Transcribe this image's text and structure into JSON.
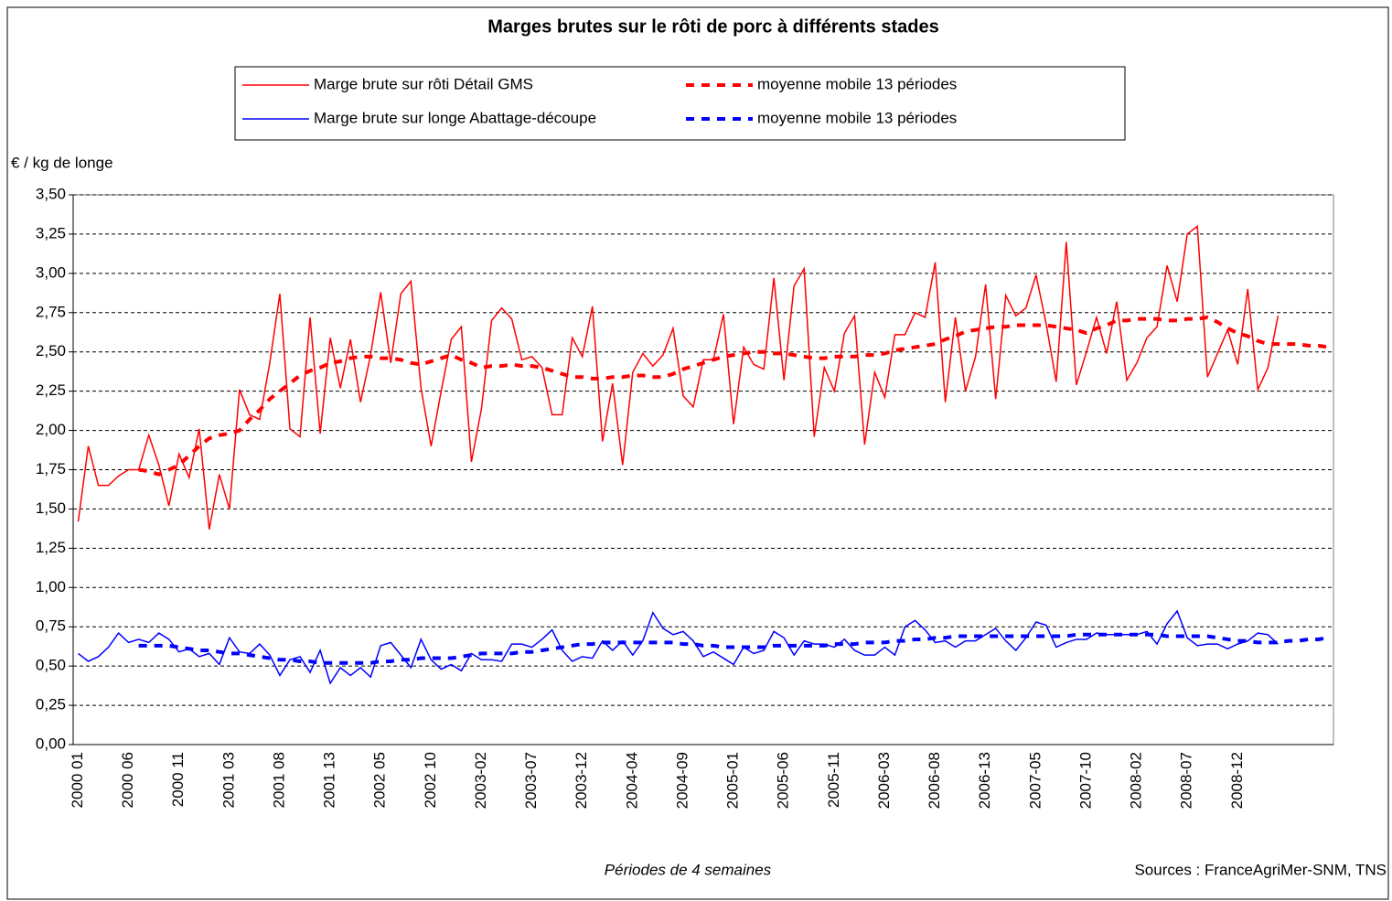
{
  "chart_data": {
    "type": "line",
    "title": "Marges brutes sur le rôti de porc à différents stades",
    "y_label": "€ / kg de longe",
    "x_label": "Périodes de 4 semaines",
    "source": "Sources : FranceAgriMer-SNM, TNS",
    "categories": [
      "2000 01",
      null,
      null,
      null,
      null,
      "2000 06",
      null,
      null,
      null,
      null,
      "2000 11",
      null,
      null,
      null,
      null,
      "2001 03",
      null,
      null,
      null,
      null,
      "2001 08",
      null,
      null,
      null,
      null,
      "2001 13",
      null,
      null,
      null,
      null,
      "2002 05",
      null,
      null,
      null,
      null,
      "2002 10",
      null,
      null,
      null,
      null,
      "2003-02",
      null,
      null,
      null,
      null,
      "2003-07",
      null,
      null,
      null,
      null,
      "2003-12",
      null,
      null,
      null,
      null,
      "2004-04",
      null,
      null,
      null,
      null,
      "2004-09",
      null,
      null,
      null,
      null,
      "2005-01",
      null,
      null,
      null,
      null,
      "2005-06",
      null,
      null,
      null,
      null,
      "2005-11",
      null,
      null,
      null,
      null,
      "2006-03",
      null,
      null,
      null,
      null,
      "2006-08",
      null,
      null,
      null,
      null,
      "2006-13",
      null,
      null,
      null,
      null,
      "2007-05",
      null,
      null,
      null,
      null,
      "2007-10",
      null,
      null,
      null,
      null,
      "2008-02",
      null,
      null,
      null,
      null,
      "2008-07",
      null,
      null,
      null,
      null,
      "2008-12",
      null,
      null,
      null,
      null,
      null,
      null,
      null,
      null,
      null
    ],
    "series": [
      {
        "name": "Marge brute sur rôti Détail GMS",
        "color": "#ff0000",
        "line_style": "solid",
        "values": [
          1.42,
          1.9,
          1.65,
          1.65,
          1.71,
          1.75,
          1.75,
          1.97,
          1.78,
          1.52,
          1.85,
          1.7,
          2.01,
          1.37,
          1.72,
          1.5,
          2.26,
          2.1,
          2.07,
          2.43,
          2.87,
          2.01,
          1.96,
          2.72,
          1.98,
          2.59,
          2.27,
          2.58,
          2.18,
          2.48,
          2.88,
          2.43,
          2.87,
          2.95,
          2.27,
          1.9,
          2.25,
          2.58,
          2.66,
          1.8,
          2.14,
          2.7,
          2.78,
          2.71,
          2.45,
          2.47,
          2.4,
          2.1,
          2.1,
          2.59,
          2.47,
          2.79,
          1.93,
          2.3,
          1.78,
          2.37,
          2.49,
          2.41,
          2.48,
          2.65,
          2.22,
          2.15,
          2.45,
          2.45,
          2.74,
          2.04,
          2.53,
          2.42,
          2.39,
          2.97,
          2.32,
          2.92,
          3.03,
          1.96,
          2.4,
          2.25,
          2.62,
          2.73,
          1.91,
          2.37,
          2.21,
          2.61,
          2.61,
          2.75,
          2.72,
          3.07,
          2.18,
          2.72,
          2.25,
          2.47,
          2.93,
          2.2,
          2.86,
          2.73,
          2.78,
          2.99,
          2.68,
          2.31,
          3.2,
          2.29,
          2.5,
          2.72,
          2.49,
          2.82,
          2.32,
          2.43,
          2.59,
          2.66,
          3.05,
          2.82,
          3.25,
          3.3,
          2.34,
          2.49,
          2.64,
          2.42,
          2.9,
          2.26,
          2.4,
          2.73,
          null,
          null,
          null,
          null,
          null
        ]
      },
      {
        "name": "moyenne mobile 13 périodes",
        "color": "#ff0000",
        "line_style": "dashed",
        "values": [
          null,
          null,
          null,
          null,
          null,
          null,
          1.75,
          1.74,
          1.72,
          1.75,
          1.78,
          1.84,
          1.9,
          1.95,
          1.97,
          1.98,
          2.0,
          2.07,
          2.13,
          2.2,
          2.25,
          2.3,
          2.35,
          2.38,
          2.4,
          2.43,
          2.44,
          2.46,
          2.47,
          2.47,
          2.46,
          2.46,
          2.45,
          2.43,
          2.42,
          2.44,
          2.46,
          2.48,
          2.45,
          2.43,
          2.4,
          2.41,
          2.41,
          2.42,
          2.41,
          2.41,
          2.4,
          2.38,
          2.36,
          2.34,
          2.34,
          2.33,
          2.33,
          2.34,
          2.34,
          2.35,
          2.35,
          2.34,
          2.34,
          2.36,
          2.39,
          2.41,
          2.43,
          2.45,
          2.47,
          2.48,
          2.49,
          2.5,
          2.5,
          2.49,
          2.49,
          2.48,
          2.47,
          2.46,
          2.46,
          2.47,
          2.47,
          2.47,
          2.48,
          2.48,
          2.49,
          2.51,
          2.52,
          2.53,
          2.54,
          2.55,
          2.58,
          2.6,
          2.63,
          2.64,
          2.65,
          2.66,
          2.66,
          2.67,
          2.67,
          2.67,
          2.67,
          2.66,
          2.65,
          2.64,
          2.62,
          2.65,
          2.67,
          2.7,
          2.7,
          2.71,
          2.71,
          2.71,
          2.7,
          2.7,
          2.71,
          2.71,
          2.72,
          2.69,
          2.65,
          2.62,
          2.6,
          2.57,
          2.55,
          2.55,
          2.55,
          2.55,
          2.54,
          2.54,
          2.53
        ]
      },
      {
        "name": "Marge brute sur longe Abattage-découpe",
        "color": "#0000ff",
        "line_style": "solid",
        "values": [
          0.58,
          0.53,
          0.56,
          0.62,
          0.71,
          0.65,
          0.67,
          0.65,
          0.71,
          0.67,
          0.59,
          0.61,
          0.56,
          0.58,
          0.51,
          0.68,
          0.59,
          0.58,
          0.64,
          0.57,
          0.44,
          0.54,
          0.56,
          0.46,
          0.6,
          0.39,
          0.49,
          0.44,
          0.49,
          0.43,
          0.63,
          0.65,
          0.57,
          0.49,
          0.67,
          0.54,
          0.48,
          0.51,
          0.47,
          0.58,
          0.54,
          0.54,
          0.53,
          0.64,
          0.64,
          0.62,
          0.67,
          0.73,
          0.6,
          0.53,
          0.56,
          0.55,
          0.66,
          0.6,
          0.66,
          0.57,
          0.66,
          0.84,
          0.74,
          0.7,
          0.72,
          0.66,
          0.56,
          0.59,
          0.55,
          0.51,
          0.62,
          0.58,
          0.6,
          0.72,
          0.68,
          0.57,
          0.66,
          0.64,
          0.64,
          0.62,
          0.67,
          0.6,
          0.57,
          0.57,
          0.62,
          0.57,
          0.75,
          0.79,
          0.73,
          0.65,
          0.66,
          0.62,
          0.66,
          0.66,
          0.7,
          0.74,
          0.66,
          0.6,
          0.68,
          0.78,
          0.76,
          0.62,
          0.65,
          0.67,
          0.67,
          0.71,
          0.7,
          0.7,
          0.7,
          0.7,
          0.72,
          0.64,
          0.77,
          0.85,
          0.68,
          0.63,
          0.64,
          0.64,
          0.61,
          0.64,
          0.66,
          0.71,
          0.7,
          0.64,
          null,
          null,
          null,
          null,
          null
        ]
      },
      {
        "name": "moyenne mobile 13 périodes",
        "color": "#0000ff",
        "line_style": "dashed",
        "values": [
          null,
          null,
          null,
          null,
          null,
          null,
          0.63,
          0.63,
          0.63,
          0.63,
          0.62,
          0.61,
          0.6,
          0.6,
          0.59,
          0.58,
          0.58,
          0.57,
          0.56,
          0.55,
          0.54,
          0.54,
          0.53,
          0.53,
          0.52,
          0.52,
          0.52,
          0.52,
          0.52,
          0.52,
          0.53,
          0.53,
          0.54,
          0.54,
          0.55,
          0.55,
          0.55,
          0.55,
          0.56,
          0.57,
          0.58,
          0.58,
          0.58,
          0.58,
          0.59,
          0.59,
          0.6,
          0.61,
          0.62,
          0.63,
          0.64,
          0.64,
          0.65,
          0.65,
          0.65,
          0.65,
          0.65,
          0.65,
          0.65,
          0.65,
          0.64,
          0.64,
          0.63,
          0.63,
          0.62,
          0.62,
          0.62,
          0.62,
          0.62,
          0.63,
          0.63,
          0.63,
          0.63,
          0.63,
          0.63,
          0.64,
          0.64,
          0.64,
          0.65,
          0.65,
          0.65,
          0.66,
          0.66,
          0.67,
          0.67,
          0.68,
          0.68,
          0.69,
          0.69,
          0.69,
          0.69,
          0.69,
          0.69,
          0.69,
          0.69,
          0.69,
          0.69,
          0.69,
          0.69,
          0.7,
          0.7,
          0.7,
          0.7,
          0.7,
          0.7,
          0.7,
          0.7,
          0.7,
          0.69,
          0.69,
          0.69,
          0.69,
          0.69,
          0.68,
          0.67,
          0.66,
          0.66,
          0.65,
          0.65,
          0.65,
          0.66,
          0.66,
          0.67,
          0.67,
          0.68
        ]
      }
    ],
    "ylim": [
      0,
      3.5
    ],
    "yticks": [
      {
        "value": 0,
        "label": "0,00"
      },
      {
        "value": 0.25,
        "label": "0,25"
      },
      {
        "value": 0.5,
        "label": "0,50"
      },
      {
        "value": 0.75,
        "label": "0,75"
      },
      {
        "value": 1,
        "label": "1,00"
      },
      {
        "value": 1.25,
        "label": "1,25"
      },
      {
        "value": 1.5,
        "label": "1,50"
      },
      {
        "value": 1.75,
        "label": "1,75"
      },
      {
        "value": 2,
        "label": "2,00"
      },
      {
        "value": 2.25,
        "label": "2,25"
      },
      {
        "value": 2.5,
        "label": "2,50"
      },
      {
        "value": 2.75,
        "label": "2,75"
      },
      {
        "value": 3,
        "label": "3,00"
      },
      {
        "value": 3.25,
        "label": "3,25"
      },
      {
        "value": 3.5,
        "label": "3,50"
      }
    ],
    "grid": true
  }
}
